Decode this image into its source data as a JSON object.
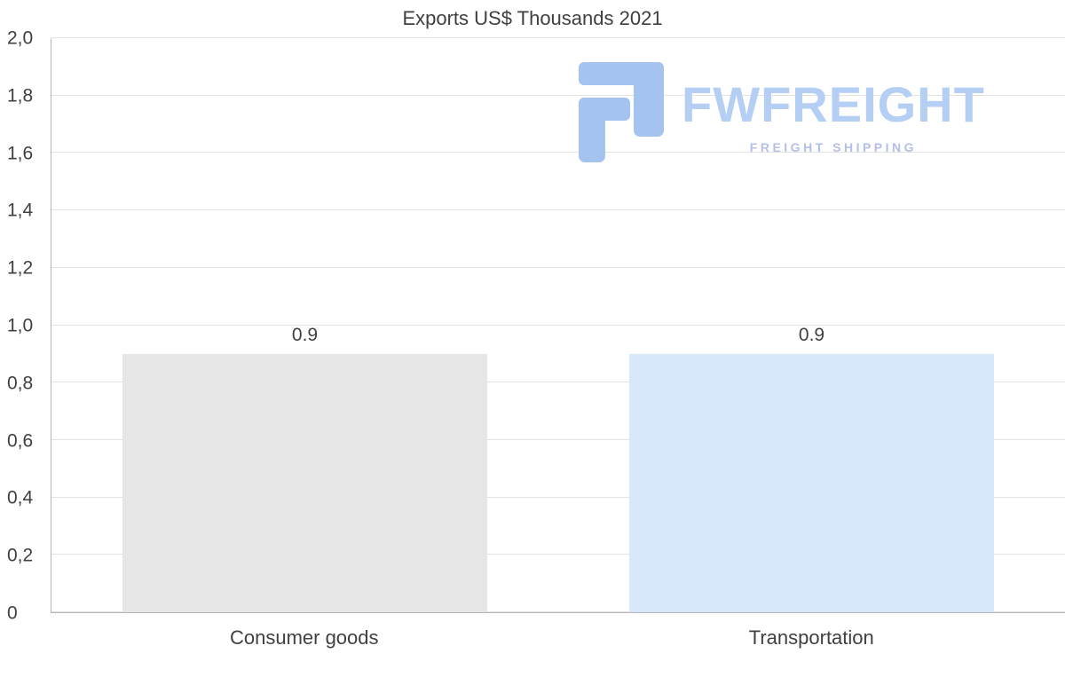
{
  "chart_data": {
    "type": "bar",
    "title": "Exports US$ Thousands 2021",
    "categories": [
      "Consumer goods",
      "Transportation"
    ],
    "values": [
      0.9,
      0.9
    ],
    "value_labels": [
      "0.9",
      "0.9"
    ],
    "bar_colors": [
      "#e6e6e6",
      "#d6e8fa"
    ],
    "ylim": [
      0,
      2
    ],
    "ytick_step": 0.2,
    "ytick_labels": [
      "0",
      "0,2",
      "0,4",
      "0,6",
      "0,8",
      "1,0",
      "1,2",
      "1,4",
      "1,6",
      "1,8",
      "2,0"
    ],
    "grid": true,
    "legend": false,
    "xlabel": "",
    "ylabel": ""
  },
  "logo": {
    "brand": "FWFREIGHT",
    "tagline": "FREIGHT SHIPPING",
    "icon_color": "#a5c3ef",
    "brand_color": "#b5cef3",
    "tagline_color": "#b4bfe7"
  },
  "colors": {
    "title": "#3f3f3f",
    "label": "#404040",
    "grid": "#e3e3e3",
    "axis": "#b5b5b5",
    "background": "#ffffff"
  }
}
